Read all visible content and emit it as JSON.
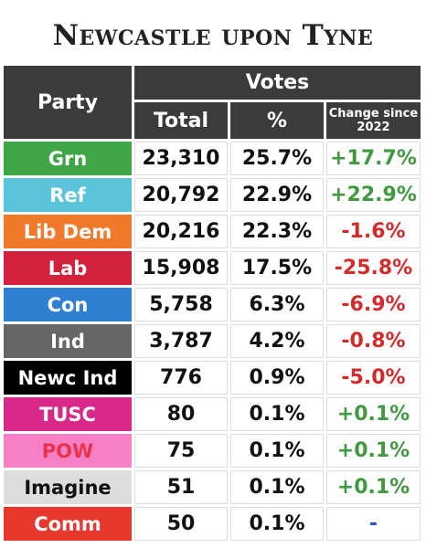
{
  "title": "Newcastle upon Tyne",
  "table": {
    "headers": {
      "party": "Party",
      "votes": "Votes",
      "total": "Total",
      "percent": "%",
      "change": "Change since 2022"
    },
    "rows": [
      {
        "party": "Grn",
        "total": "23,310",
        "percent": "25.7%",
        "change": "+17.7%",
        "bg": "#3fa648",
        "fg": "#ffffff",
        "change_color": "#3f9a3f"
      },
      {
        "party": "Ref",
        "total": "20,792",
        "percent": "22.9%",
        "change": "+22.9%",
        "bg": "#5bc3da",
        "fg": "#ffffff",
        "change_color": "#3f9a3f"
      },
      {
        "party": "Lib Dem",
        "total": "20,216",
        "percent": "22.3%",
        "change": "-1.6%",
        "bg": "#f07a2a",
        "fg": "#ffffff",
        "change_color": "#d42a2a"
      },
      {
        "party": "Lab",
        "total": "15,908",
        "percent": "17.5%",
        "change": "-25.8%",
        "bg": "#d2203d",
        "fg": "#ffffff",
        "change_color": "#d42a2a"
      },
      {
        "party": "Con",
        "total": "5,758",
        "percent": "6.3%",
        "change": "-6.9%",
        "bg": "#2f7fd2",
        "fg": "#ffffff",
        "change_color": "#d42a2a"
      },
      {
        "party": "Ind",
        "total": "3,787",
        "percent": "4.2%",
        "change": "-0.8%",
        "bg": "#666666",
        "fg": "#ffffff",
        "change_color": "#d42a2a"
      },
      {
        "party": "Newc Ind",
        "total": "776",
        "percent": "0.9%",
        "change": "-5.0%",
        "bg": "#000000",
        "fg": "#ffffff",
        "change_color": "#d42a2a"
      },
      {
        "party": "TUSC",
        "total": "80",
        "percent": "0.1%",
        "change": "+0.1%",
        "bg": "#d8288a",
        "fg": "#ffffff",
        "change_color": "#3f9a3f"
      },
      {
        "party": "POW",
        "total": "75",
        "percent": "0.1%",
        "change": "+0.1%",
        "bg": "#f77fc6",
        "fg": "#e8344a",
        "change_color": "#3f9a3f"
      },
      {
        "party": "Imagine",
        "total": "51",
        "percent": "0.1%",
        "change": "+0.1%",
        "bg": "#dddddd",
        "fg": "#111111",
        "change_color": "#3f9a3f"
      },
      {
        "party": "Comm",
        "total": "50",
        "percent": "0.1%",
        "change": "-",
        "bg": "#e8382e",
        "fg": "#ffffff",
        "change_color": "#2a56c4"
      }
    ]
  }
}
